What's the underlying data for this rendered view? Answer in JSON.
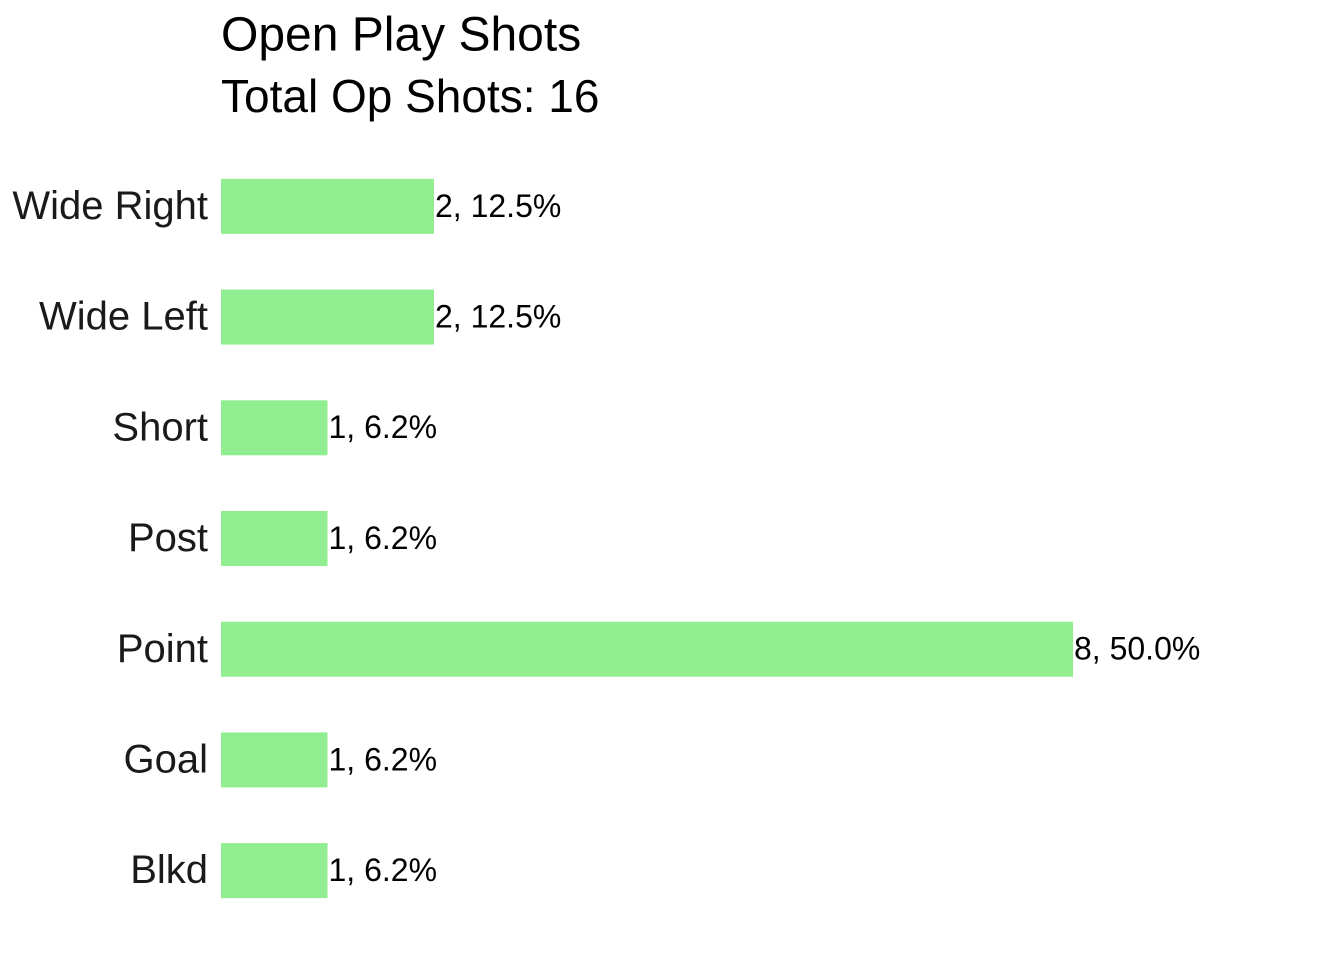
{
  "chart_data": {
    "type": "barh",
    "title": "Open Play Shots",
    "subtitle": "Total Op Shots: 16",
    "categories": [
      "Wide Right",
      "Wide Left",
      "Short",
      "Post",
      "Point",
      "Goal",
      "Blkd"
    ],
    "values": [
      2,
      2,
      1,
      1,
      8,
      1,
      1
    ],
    "value_labels": [
      "2, 12.5%",
      "2, 12.5%",
      "1, 6.2%",
      "1, 6.2%",
      "8, 50.0%",
      "1, 6.2%",
      "1, 6.2%"
    ],
    "color": "#90ee90",
    "xlim": [
      0,
      8
    ]
  }
}
